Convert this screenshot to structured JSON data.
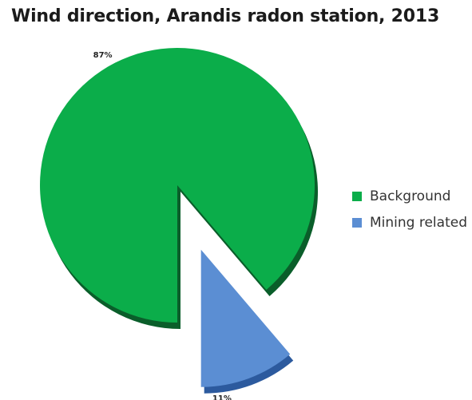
{
  "chart_data": {
    "type": "pie",
    "title": "Wind direction, Arandis radon station, 2013",
    "slices": [
      {
        "label": "Background",
        "value": 87,
        "value_label": "87%",
        "color": "#0bad4a",
        "exploded": false
      },
      {
        "label": "Mining related",
        "value": 11,
        "value_label": "11%",
        "color": "#5b8ed3",
        "exploded": true
      }
    ],
    "legend_position": "right",
    "shadow_colors": {
      "Background": "#0a5e2a",
      "Mining related": "#2c5a9e"
    }
  }
}
